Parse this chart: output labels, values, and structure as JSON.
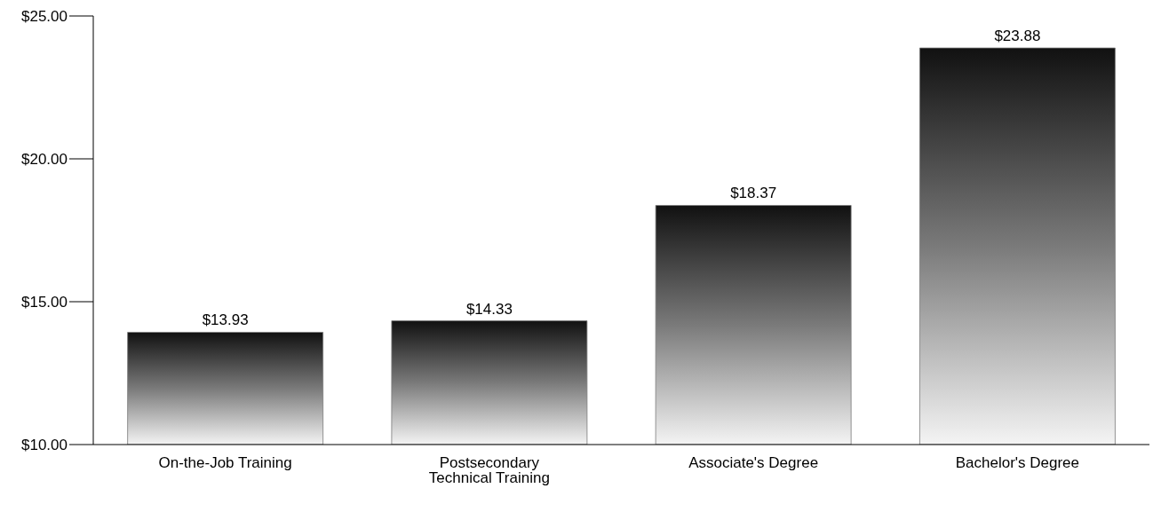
{
  "chart_data": {
    "type": "bar",
    "categories": [
      "On-the-Job Training",
      "Postsecondary Technical Training",
      "Associate's Degree",
      "Bachelor's Degree"
    ],
    "values": [
      13.93,
      14.33,
      18.37,
      23.88
    ],
    "value_labels": [
      "$13.93",
      "$14.33",
      "$18.37",
      "$23.88"
    ],
    "color": "#7a7a7a",
    "ylim": [
      10,
      25
    ],
    "yticks": [
      {
        "value": 10,
        "label": "$10.00"
      },
      {
        "value": 15,
        "label": "$15.00"
      },
      {
        "value": 20,
        "label": "$20.00"
      },
      {
        "value": 25,
        "label": "$25.00"
      }
    ],
    "grid": false
  }
}
